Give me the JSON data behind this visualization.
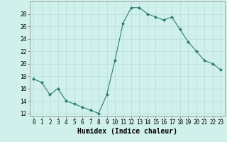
{
  "x": [
    0,
    1,
    2,
    3,
    4,
    5,
    6,
    7,
    8,
    9,
    10,
    11,
    12,
    13,
    14,
    15,
    16,
    17,
    18,
    19,
    20,
    21,
    22,
    23
  ],
  "y": [
    17.5,
    17.0,
    15.0,
    16.0,
    14.0,
    13.5,
    13.0,
    12.5,
    12.0,
    15.0,
    20.5,
    26.5,
    29.0,
    29.0,
    28.0,
    27.5,
    27.0,
    27.5,
    25.5,
    23.5,
    22.0,
    20.5,
    20.0,
    19.0
  ],
  "line_color": "#2e7d6e",
  "marker": "D",
  "marker_size": 2.0,
  "bg_color": "#cff0eb",
  "grid_color": "#b8ddd8",
  "xlabel": "Humidex (Indice chaleur)",
  "xlim": [
    -0.5,
    23.5
  ],
  "ylim": [
    11.5,
    30.0
  ],
  "yticks": [
    12,
    14,
    16,
    18,
    20,
    22,
    24,
    26,
    28
  ],
  "xticks": [
    0,
    1,
    2,
    3,
    4,
    5,
    6,
    7,
    8,
    9,
    10,
    11,
    12,
    13,
    14,
    15,
    16,
    17,
    18,
    19,
    20,
    21,
    22,
    23
  ],
  "tick_fontsize": 5.5,
  "xlabel_fontsize": 7.0,
  "linewidth": 0.8
}
